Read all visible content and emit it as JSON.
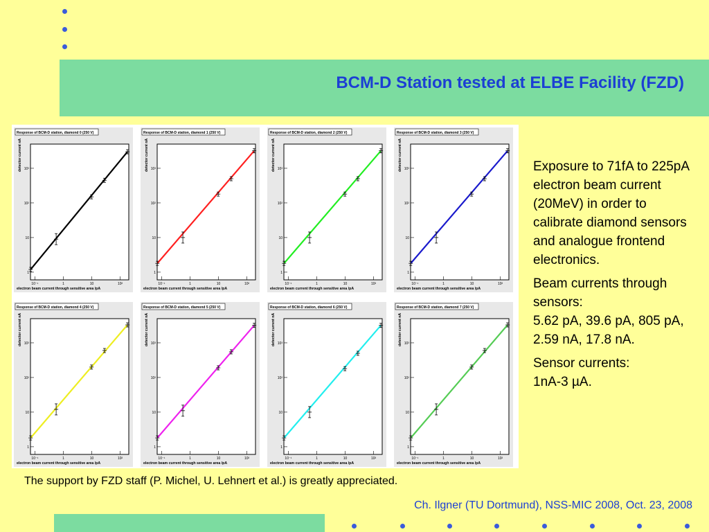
{
  "slide": {
    "title": "BCM-D Station tested at ELBE Facility (FZD)",
    "acknowledgement": "The support by FZD staff (P. Michel, U. Lehnert et al.) is greatly appreciated.",
    "credit": "Ch. Ilgner (TU Dortmund), NSS-MIC 2008, Oct. 23, 2008",
    "text": {
      "p1": "Exposure to 71fA to 225pA electron beam current (20MeV) in order to calibrate diamond sensors and analogue frontend electronics.",
      "p2_line1": "Beam currents through sensors:",
      "p2_line2": "5.62 pA, 39.6 pA, 805 pA, 2.59 nA, 17.8 nA.",
      "p3_line1": "Sensor currents:",
      "p3_line2": "1nA-3 µA."
    },
    "colors": {
      "background": "#ffff99",
      "band": "#7cdca0",
      "accent": "#1c3fd4",
      "bullet": "#3b5bdb"
    }
  },
  "chart_data": [
    {
      "type": "scatter",
      "title": "Response of BCM-D station, diamond 0 (250 V)",
      "xlabel": "electron beam current through sensitive area /pA",
      "ylabel": "detector current nA",
      "xscale": "log",
      "yscale": "log",
      "xlim": [
        0.07,
        200
      ],
      "ylim": [
        0.6,
        5000
      ],
      "line_color": "#000000",
      "x": [
        0.071,
        0.56,
        9.8,
        28,
        180
      ],
      "y": [
        1.2,
        9,
        150,
        450,
        3000
      ],
      "x_ticks": [
        "10⁻¹",
        "1",
        "10",
        "10²"
      ],
      "y_ticks": [
        "1",
        "10",
        "10²",
        "10³"
      ]
    },
    {
      "type": "scatter",
      "title": "Response of BCM-D station, diamond 1 (250 V)",
      "xlabel": "electron beam current through sensitive area /pA",
      "ylabel": "detector current nA",
      "xscale": "log",
      "yscale": "log",
      "xlim": [
        0.07,
        200
      ],
      "ylim": [
        0.6,
        5000
      ],
      "line_color": "#ff2020",
      "x": [
        0.071,
        0.56,
        9.8,
        28,
        180
      ],
      "y": [
        1.8,
        10,
        180,
        500,
        3200
      ],
      "x_ticks": [
        "10⁻¹",
        "1",
        "10",
        "10²"
      ],
      "y_ticks": [
        "1",
        "10",
        "10²",
        "10³"
      ]
    },
    {
      "type": "scatter",
      "title": "Response of BCM-D station, diamond 2 (250 V)",
      "xlabel": "electron beam current through sensitive area /pA",
      "ylabel": "detector current nA",
      "xscale": "log",
      "yscale": "log",
      "xlim": [
        0.07,
        200
      ],
      "ylim": [
        0.6,
        5000
      ],
      "line_color": "#22ee22",
      "x": [
        0.071,
        0.56,
        9.8,
        28,
        180
      ],
      "y": [
        1.8,
        10,
        180,
        500,
        3200
      ],
      "x_ticks": [
        "10⁻¹",
        "1",
        "10",
        "10²"
      ],
      "y_ticks": [
        "1",
        "10",
        "10²",
        "10³"
      ]
    },
    {
      "type": "scatter",
      "title": "Response of BCM-D station, diamond 3 (250 V)",
      "xlabel": "electron beam current through sensitive area /pA",
      "ylabel": "detector current nA",
      "xscale": "log",
      "yscale": "log",
      "xlim": [
        0.07,
        200
      ],
      "ylim": [
        0.6,
        5000
      ],
      "line_color": "#1a1acc",
      "x": [
        0.071,
        0.56,
        9.8,
        28,
        180
      ],
      "y": [
        1.8,
        10,
        180,
        500,
        3200
      ],
      "x_ticks": [
        "10⁻¹",
        "1",
        "10",
        "10²"
      ],
      "y_ticks": [
        "1",
        "10",
        "10²",
        "10³"
      ]
    },
    {
      "type": "scatter",
      "title": "Response of BCM-D station, diamond 4 (250 V)",
      "xlabel": "electron beam current through sensitive area /pA",
      "ylabel": "detector current nA",
      "xscale": "log",
      "yscale": "log",
      "xlim": [
        0.07,
        200
      ],
      "ylim": [
        0.6,
        5000
      ],
      "line_color": "#eeee22",
      "x": [
        0.071,
        0.56,
        9.8,
        28,
        180
      ],
      "y": [
        1.8,
        12,
        200,
        600,
        3300
      ],
      "x_ticks": [
        "10⁻¹",
        "1",
        "10",
        "10²"
      ],
      "y_ticks": [
        "1",
        "10",
        "10²",
        "10³"
      ]
    },
    {
      "type": "scatter",
      "title": "Response of BCM-D station, diamond 5 (250 V)",
      "xlabel": "electron beam current through sensitive area /pA",
      "ylabel": "detector current nA",
      "xscale": "log",
      "yscale": "log",
      "xlim": [
        0.07,
        200
      ],
      "ylim": [
        0.6,
        5000
      ],
      "line_color": "#ee22ee",
      "x": [
        0.071,
        0.56,
        9.8,
        28,
        180
      ],
      "y": [
        1.8,
        11,
        190,
        550,
        3200
      ],
      "x_ticks": [
        "10⁻¹",
        "1",
        "10",
        "10²"
      ],
      "y_ticks": [
        "1",
        "10",
        "10²",
        "10³"
      ]
    },
    {
      "type": "scatter",
      "title": "Response of BCM-D station, diamond 6 (250 V)",
      "xlabel": "electron beam current through sensitive area /pA",
      "ylabel": "detector current nA",
      "xscale": "log",
      "yscale": "log",
      "xlim": [
        0.07,
        200
      ],
      "ylim": [
        0.6,
        5000
      ],
      "line_color": "#22eeee",
      "x": [
        0.071,
        0.56,
        9.8,
        28,
        180
      ],
      "y": [
        1.8,
        10,
        180,
        500,
        3200
      ],
      "x_ticks": [
        "10⁻¹",
        "1",
        "10",
        "10²"
      ],
      "y_ticks": [
        "1",
        "10",
        "10²",
        "10³"
      ]
    },
    {
      "type": "scatter",
      "title": "Response of BCM-D station, diamond 7 (250 V)",
      "xlabel": "electron beam current through sensitive area /pA",
      "ylabel": "detector current nA",
      "xscale": "log",
      "yscale": "log",
      "xlim": [
        0.07,
        200
      ],
      "ylim": [
        0.6,
        5000
      ],
      "line_color": "#55cc55",
      "x": [
        0.071,
        0.56,
        9.8,
        28,
        180
      ],
      "y": [
        1.8,
        12,
        200,
        600,
        3300
      ],
      "x_ticks": [
        "10⁻¹",
        "1",
        "10",
        "10²"
      ],
      "y_ticks": [
        "1",
        "10",
        "10²",
        "10³"
      ]
    }
  ]
}
